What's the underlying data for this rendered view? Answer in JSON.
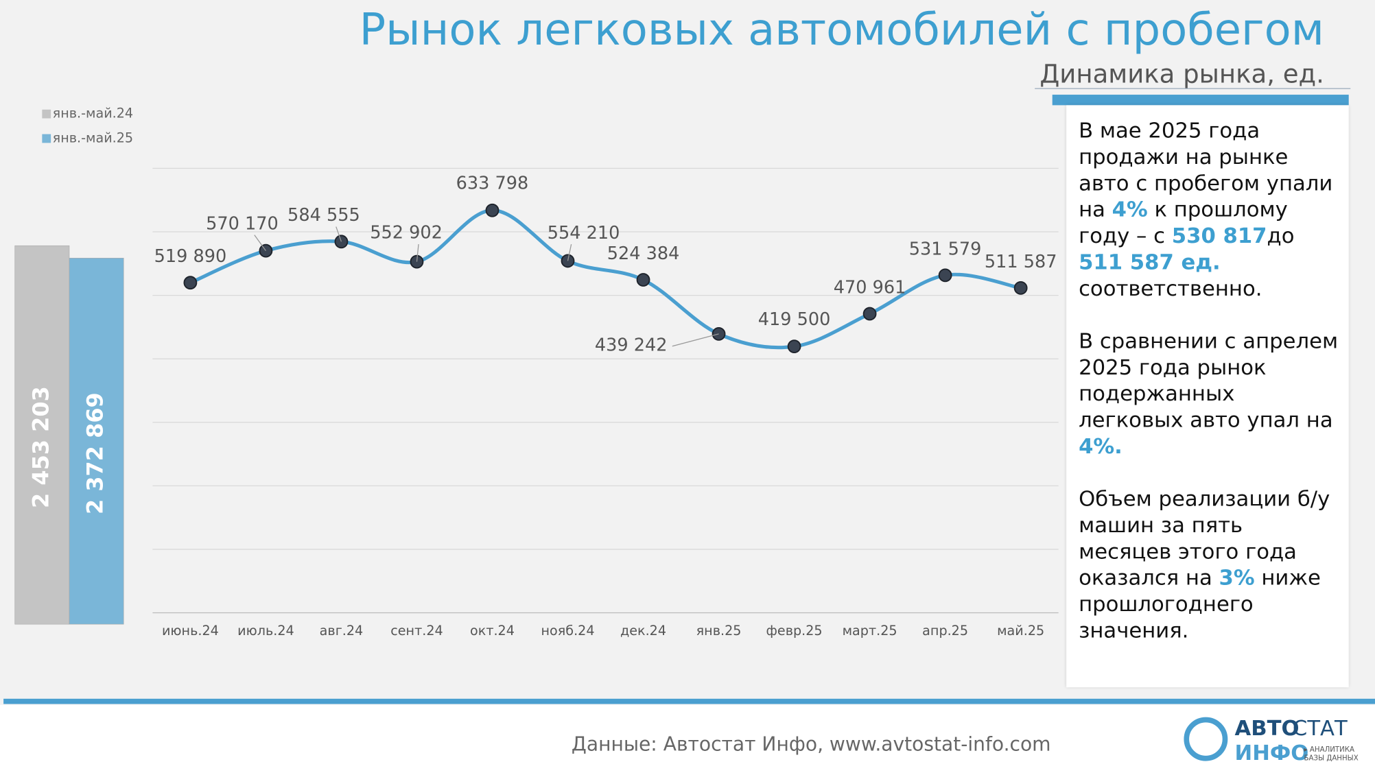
{
  "header": {
    "title": "Рынок легковых автомобилей с пробегом",
    "subtitle": "Динамика рынка, ед."
  },
  "chart_data": [
    {
      "type": "line",
      "categories": [
        "июнь.24",
        "июль.24",
        "авг.24",
        "сент.24",
        "окт.24",
        "нояб.24",
        "дек.24",
        "янв.25",
        "февр.25",
        "март.25",
        "апр.25",
        "май.25"
      ],
      "series": [
        {
          "color": "#4a9fd0",
          "values": [
            519890,
            570170,
            584555,
            552902,
            633798,
            554210,
            524384,
            439242,
            419500,
            470961,
            531579,
            511587
          ],
          "value_labels": [
            "519 890",
            "570 170",
            "584 555",
            "552 902",
            "633 798",
            "554 210",
            "524 384",
            "439 242",
            "419 500",
            "470 961",
            "531 579",
            "511 587"
          ]
        }
      ],
      "ylim": [
        0,
        700000
      ],
      "yticks": [
        0,
        100000,
        200000,
        300000,
        400000,
        500000,
        600000,
        700000
      ],
      "grid": true
    },
    {
      "type": "bar",
      "series": [
        {
          "name": "янв.-май.24",
          "color": "#c4c4c4",
          "values": [
            2453203
          ],
          "value_labels": [
            "2 453 203"
          ]
        },
        {
          "name": "янв.-май.25",
          "color": "#7ab6d8",
          "values": [
            2372869
          ],
          "value_labels": [
            "2 372 869"
          ]
        }
      ],
      "ylim": [
        0,
        2500000
      ]
    }
  ],
  "text_panel": {
    "paragraphs": [
      [
        {
          "text": "В мае 2025 года продажи на рынке авто с пробегом упали на "
        },
        {
          "text": "4%",
          "em": true
        },
        {
          "text": " к прошлому году – с "
        },
        {
          "text": "530 817",
          "em": true
        },
        {
          "text": "до "
        },
        {
          "text": "511 587 ед.",
          "em": true
        },
        {
          "text": " соответственно."
        }
      ],
      [
        {
          "text": "В сравнении с апрелем 2025 года рынок подержанных легковых авто упал на "
        },
        {
          "text": "4%.",
          "em": true
        }
      ],
      [
        {
          "text": "Объем реализации б/у машин за пять месяцев этого года оказался на "
        },
        {
          "text": "3%",
          "em": true
        },
        {
          "text": " ниже прошлогоднего значения."
        }
      ]
    ]
  },
  "footer": {
    "source": "Данные: Автостат Инфо, www.avtostat-info.com",
    "logo": [
      "АВТО",
      "СТАТ",
      "ИНФО",
      "▸ АНАЛИТИКА",
      "БАЗЫ ДАННЫХ"
    ]
  }
}
